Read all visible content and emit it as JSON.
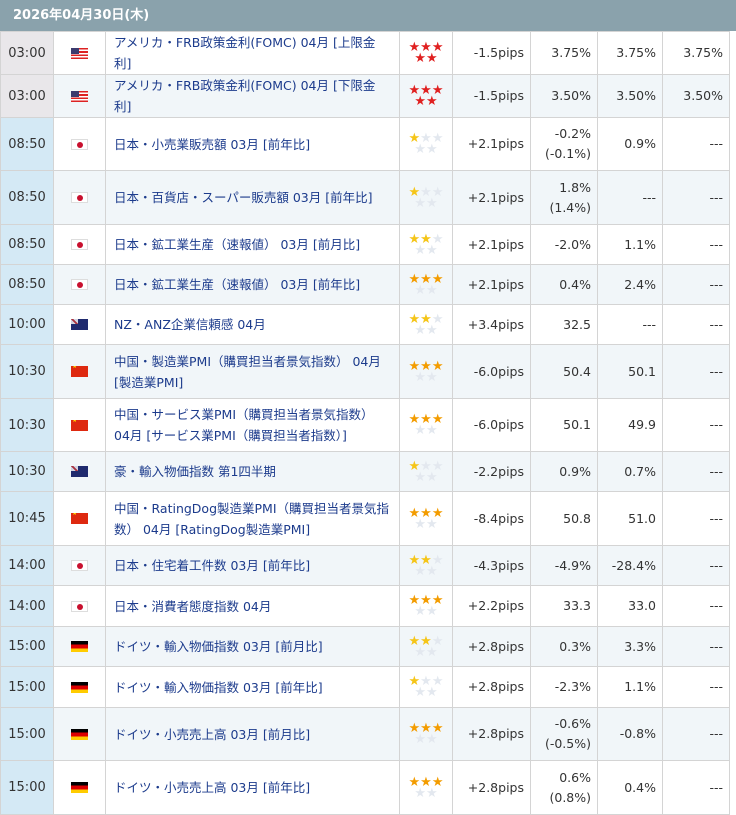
{
  "header": {
    "date": "2026年04月30日(木)"
  },
  "colors": {
    "header_bg": "#8aa2ac",
    "event_text": "#1c3b8c",
    "star_1_2": "#f5c518",
    "star_3": "#f39c00",
    "star_5": "#e02020"
  },
  "rows": [
    {
      "time": "03:00",
      "country": "us",
      "event": "アメリカ・FRB政策金利(FOMC) 04月 [上限金利]",
      "importance": 5,
      "pips": "-1.5pips",
      "actual": "3.75%",
      "actual_revised": "",
      "forecast": "3.75%",
      "previous": "3.75%"
    },
    {
      "time": "03:00",
      "country": "us",
      "event": "アメリカ・FRB政策金利(FOMC) 04月 [下限金利]",
      "importance": 5,
      "pips": "-1.5pips",
      "actual": "3.50%",
      "actual_revised": "",
      "forecast": "3.50%",
      "previous": "3.50%"
    },
    {
      "time": "08:50",
      "country": "jp",
      "event": "日本・小売業販売額 03月 [前年比]",
      "importance": 1,
      "pips": "+2.1pips",
      "actual": "-0.2%",
      "actual_revised": "(-0.1%)",
      "forecast": "0.9%",
      "previous": "---"
    },
    {
      "time": "08:50",
      "country": "jp",
      "event": "日本・百貨店・スーパー販売額 03月 [前年比]",
      "importance": 1,
      "pips": "+2.1pips",
      "actual": "1.8%",
      "actual_revised": "(1.4%)",
      "forecast": "---",
      "previous": "---"
    },
    {
      "time": "08:50",
      "country": "jp",
      "event": "日本・鉱工業生産（速報値） 03月 [前月比]",
      "importance": 2,
      "pips": "+2.1pips",
      "actual": "-2.0%",
      "actual_revised": "",
      "forecast": "1.1%",
      "previous": "---"
    },
    {
      "time": "08:50",
      "country": "jp",
      "event": "日本・鉱工業生産（速報値） 03月 [前年比]",
      "importance": 3,
      "pips": "+2.1pips",
      "actual": "0.4%",
      "actual_revised": "",
      "forecast": "2.4%",
      "previous": "---"
    },
    {
      "time": "10:00",
      "country": "nz",
      "event": "NZ・ANZ企業信頼感 04月",
      "importance": 2,
      "pips": "+3.4pips",
      "actual": "32.5",
      "actual_revised": "",
      "forecast": "---",
      "previous": "---"
    },
    {
      "time": "10:30",
      "country": "cn",
      "event": "中国・製造業PMI（購買担当者景気指数） 04月 [製造業PMI]",
      "importance": 3,
      "pips": "-6.0pips",
      "actual": "50.4",
      "actual_revised": "",
      "forecast": "50.1",
      "previous": "---"
    },
    {
      "time": "10:30",
      "country": "cn",
      "event": "中国・サービス業PMI（購買担当者景気指数） 04月 [サービス業PMI（購買担当者指数）]",
      "importance": 3,
      "pips": "-6.0pips",
      "actual": "50.1",
      "actual_revised": "",
      "forecast": "49.9",
      "previous": "---"
    },
    {
      "time": "10:30",
      "country": "au",
      "event": "豪・輸入物価指数 第1四半期",
      "importance": 1,
      "pips": "-2.2pips",
      "actual": "0.9%",
      "actual_revised": "",
      "forecast": "0.7%",
      "previous": "---"
    },
    {
      "time": "10:45",
      "country": "cn",
      "event": "中国・RatingDog製造業PMI（購買担当者景気指数） 04月 [RatingDog製造業PMI]",
      "importance": 3,
      "pips": "-8.4pips",
      "actual": "50.8",
      "actual_revised": "",
      "forecast": "51.0",
      "previous": "---"
    },
    {
      "time": "14:00",
      "country": "jp",
      "event": "日本・住宅着工件数 03月 [前年比]",
      "importance": 2,
      "pips": "-4.3pips",
      "actual": "-4.9%",
      "actual_revised": "",
      "forecast": "-28.4%",
      "previous": "---"
    },
    {
      "time": "14:00",
      "country": "jp",
      "event": "日本・消費者態度指数 04月",
      "importance": 3,
      "pips": "+2.2pips",
      "actual": "33.3",
      "actual_revised": "",
      "forecast": "33.0",
      "previous": "---"
    },
    {
      "time": "15:00",
      "country": "de",
      "event": "ドイツ・輸入物価指数 03月 [前月比]",
      "importance": 2,
      "pips": "+2.8pips",
      "actual": "0.3%",
      "actual_revised": "",
      "forecast": "3.3%",
      "previous": "---"
    },
    {
      "time": "15:00",
      "country": "de",
      "event": "ドイツ・輸入物価指数 03月 [前年比]",
      "importance": 1,
      "pips": "+2.8pips",
      "actual": "-2.3%",
      "actual_revised": "",
      "forecast": "1.1%",
      "previous": "---"
    },
    {
      "time": "15:00",
      "country": "de",
      "event": "ドイツ・小売売上高 03月 [前月比]",
      "importance": 3,
      "pips": "+2.8pips",
      "actual": "-0.6%",
      "actual_revised": "(-0.5%)",
      "forecast": "-0.8%",
      "previous": "---"
    },
    {
      "time": "15:00",
      "country": "de",
      "event": "ドイツ・小売売上高 03月 [前年比]",
      "importance": 3,
      "pips": "+2.8pips",
      "actual": "0.6%",
      "actual_revised": "(0.8%)",
      "forecast": "0.4%",
      "previous": "---"
    }
  ]
}
